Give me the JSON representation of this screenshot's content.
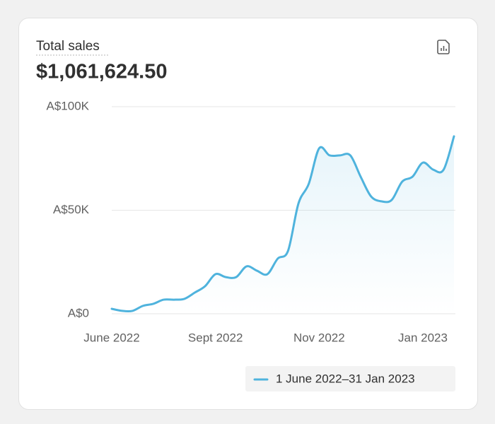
{
  "chart_data": {
    "type": "line",
    "title": "Total sales",
    "subtitle": "$1,061,624.50",
    "categories": [
      "June 2022",
      null,
      null,
      null,
      null,
      null,
      null,
      null,
      null,
      null,
      "Sept 2022",
      null,
      null,
      null,
      null,
      null,
      null,
      null,
      null,
      null,
      "Nov 2022",
      null,
      null,
      null,
      null,
      null,
      null,
      null,
      null,
      null,
      "Jan 2023",
      null,
      null,
      null
    ],
    "series": [
      {
        "name": "1 June 2022–31 Jan 2023",
        "color": "#4fb3dd",
        "values": [
          2400,
          1400,
          1400,
          3800,
          4800,
          6800,
          6800,
          7200,
          10200,
          13300,
          19100,
          17700,
          17700,
          22900,
          20800,
          19100,
          26600,
          30400,
          53200,
          62800,
          79900,
          76500,
          76500,
          76500,
          66200,
          56700,
          54300,
          55000,
          63800,
          66200,
          73000,
          69600,
          69600,
          85700
        ]
      }
    ],
    "ylim": [
      0,
      100000
    ],
    "yticks": [
      {
        "value": 0,
        "label": "A$0"
      },
      {
        "value": 50000,
        "label": "A$50K"
      },
      {
        "value": 100000,
        "label": "A$100K"
      }
    ],
    "grid": true
  }
}
